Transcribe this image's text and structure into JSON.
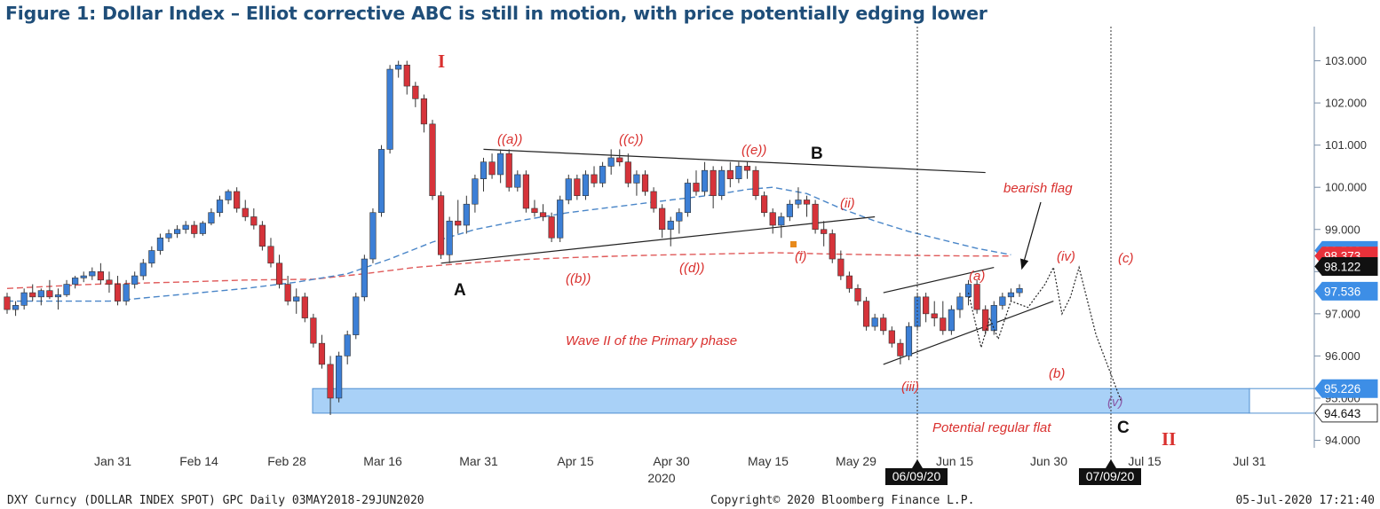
{
  "title": "Figure 1: Dollar Index – Elliot corrective ABC is still in motion, with price potentially edging lower",
  "colors": {
    "up": "#3c7fd6",
    "down": "#d6333a",
    "ma_short": "#4a86c8",
    "ma_long": "#e05a5a",
    "zone": "#a9d1f7",
    "callout_red": "#e8313a",
    "callout_blue": "#3d8ee6"
  },
  "footer": {
    "left": "DXY Curncy (DOLLAR INDEX SPOT) GPC  Daily 03MAY2018-29JUN2020",
    "center": "Copyright© 2020 Bloomberg Finance L.P.",
    "right": "05-Jul-2020 17:21:40"
  },
  "chart_data": {
    "type": "candlestick",
    "x_tick_labels": [
      "Jan 31",
      "Feb 14",
      "Feb 28",
      "Mar 16",
      "Mar 31",
      "Apr 15",
      "Apr 30",
      "May 15",
      "May 29",
      "Jun 15",
      "Jun 30",
      "Jul 15",
      "Jul 31"
    ],
    "year_label": "2020",
    "ylim": [
      93.9,
      103.8
    ],
    "y_ticks": [
      "94.000",
      "95.000",
      "96.000",
      "97.000",
      "98.000",
      "99.000",
      "100.000",
      "101.000",
      "102.000",
      "103.000"
    ],
    "value_labels": [
      {
        "text": "98.502",
        "value": 98.502,
        "color": "blue"
      },
      {
        "text": "98.373",
        "value": 98.373,
        "color": "red"
      },
      {
        "text": "98.122",
        "value": 98.122,
        "color": "black"
      },
      {
        "text": "97.536",
        "value": 97.536,
        "color": "blue"
      },
      {
        "text": "95.226",
        "value": 95.226,
        "color": "blue"
      },
      {
        "text": "94.643",
        "value": 94.643,
        "color": "white"
      }
    ],
    "support_zone": {
      "low": 94.643,
      "high": 95.226
    },
    "vlines": [
      {
        "date": "06/09/20"
      },
      {
        "date": "07/09/20"
      }
    ],
    "candles": [
      [
        97.4,
        97.5,
        97.0,
        97.1
      ],
      [
        97.1,
        97.3,
        96.95,
        97.2
      ],
      [
        97.2,
        97.6,
        97.1,
        97.5
      ],
      [
        97.5,
        97.7,
        97.3,
        97.4
      ],
      [
        97.4,
        97.6,
        97.2,
        97.55
      ],
      [
        97.55,
        97.8,
        97.35,
        97.4
      ],
      [
        97.4,
        97.6,
        97.1,
        97.45
      ],
      [
        97.45,
        97.8,
        97.4,
        97.7
      ],
      [
        97.7,
        97.9,
        97.6,
        97.85
      ],
      [
        97.85,
        98.0,
        97.75,
        97.9
      ],
      [
        97.9,
        98.1,
        97.8,
        98.0
      ],
      [
        98.0,
        98.2,
        97.7,
        97.8
      ],
      [
        97.8,
        98.0,
        97.5,
        97.7
      ],
      [
        97.7,
        97.9,
        97.2,
        97.3
      ],
      [
        97.3,
        97.8,
        97.2,
        97.7
      ],
      [
        97.7,
        98.0,
        97.6,
        97.9
      ],
      [
        97.9,
        98.3,
        97.8,
        98.2
      ],
      [
        98.2,
        98.6,
        98.1,
        98.5
      ],
      [
        98.5,
        98.9,
        98.4,
        98.8
      ],
      [
        98.8,
        99.0,
        98.7,
        98.9
      ],
      [
        98.9,
        99.1,
        98.8,
        99.0
      ],
      [
        99.0,
        99.2,
        98.9,
        99.1
      ],
      [
        99.1,
        99.2,
        98.8,
        98.9
      ],
      [
        98.9,
        99.2,
        98.85,
        99.15
      ],
      [
        99.15,
        99.5,
        99.1,
        99.4
      ],
      [
        99.4,
        99.8,
        99.3,
        99.7
      ],
      [
        99.7,
        99.95,
        99.6,
        99.9
      ],
      [
        99.9,
        100.0,
        99.4,
        99.5
      ],
      [
        99.5,
        99.7,
        99.2,
        99.3
      ],
      [
        99.3,
        99.5,
        99.0,
        99.1
      ],
      [
        99.1,
        99.2,
        98.5,
        98.6
      ],
      [
        98.6,
        98.8,
        98.1,
        98.2
      ],
      [
        98.2,
        98.4,
        97.6,
        97.7
      ],
      [
        97.7,
        97.9,
        97.2,
        97.3
      ],
      [
        97.3,
        97.6,
        97.0,
        97.4
      ],
      [
        97.4,
        97.5,
        96.8,
        96.9
      ],
      [
        96.9,
        97.0,
        96.2,
        96.3
      ],
      [
        96.3,
        96.5,
        95.7,
        95.8
      ],
      [
        95.8,
        96.0,
        94.6,
        95.0
      ],
      [
        95.0,
        96.1,
        94.9,
        96.0
      ],
      [
        96.0,
        96.6,
        95.8,
        96.5
      ],
      [
        96.5,
        97.5,
        96.4,
        97.4
      ],
      [
        97.4,
        98.4,
        97.3,
        98.3
      ],
      [
        98.3,
        99.5,
        98.2,
        99.4
      ],
      [
        99.4,
        101.0,
        99.3,
        100.9
      ],
      [
        100.9,
        102.9,
        100.8,
        102.8
      ],
      [
        102.8,
        103.0,
        102.6,
        102.9
      ],
      [
        102.9,
        103.0,
        102.2,
        102.4
      ],
      [
        102.4,
        102.5,
        101.9,
        102.1
      ],
      [
        102.1,
        102.2,
        101.3,
        101.5
      ],
      [
        101.5,
        101.6,
        99.7,
        99.8
      ],
      [
        99.8,
        99.9,
        98.3,
        98.4
      ],
      [
        98.4,
        99.3,
        98.2,
        99.2
      ],
      [
        99.2,
        99.7,
        98.9,
        99.1
      ],
      [
        99.1,
        99.8,
        98.9,
        99.6
      ],
      [
        99.6,
        100.3,
        99.4,
        100.2
      ],
      [
        100.2,
        100.7,
        99.9,
        100.6
      ],
      [
        100.6,
        100.8,
        100.2,
        100.3
      ],
      [
        100.3,
        100.9,
        100.1,
        100.8
      ],
      [
        100.8,
        100.9,
        99.9,
        100.0
      ],
      [
        100.0,
        100.4,
        99.9,
        100.3
      ],
      [
        100.3,
        100.4,
        99.4,
        99.5
      ],
      [
        99.5,
        99.7,
        99.3,
        99.4
      ],
      [
        99.4,
        99.6,
        99.2,
        99.3
      ],
      [
        99.3,
        99.4,
        98.7,
        98.8
      ],
      [
        98.8,
        99.8,
        98.7,
        99.7
      ],
      [
        99.7,
        100.3,
        99.6,
        100.2
      ],
      [
        100.2,
        100.3,
        99.7,
        99.8
      ],
      [
        99.8,
        100.4,
        99.7,
        100.3
      ],
      [
        100.3,
        100.5,
        100.0,
        100.1
      ],
      [
        100.1,
        100.6,
        100.0,
        100.5
      ],
      [
        100.5,
        100.9,
        100.3,
        100.7
      ],
      [
        100.7,
        100.9,
        100.5,
        100.6
      ],
      [
        100.6,
        100.8,
        100.0,
        100.1
      ],
      [
        100.1,
        100.4,
        99.8,
        100.3
      ],
      [
        100.3,
        100.4,
        99.8,
        99.9
      ],
      [
        99.9,
        100.0,
        99.4,
        99.5
      ],
      [
        99.5,
        99.6,
        98.8,
        99.0
      ],
      [
        99.0,
        99.3,
        98.6,
        99.2
      ],
      [
        99.2,
        99.5,
        98.9,
        99.4
      ],
      [
        99.4,
        100.2,
        99.3,
        100.1
      ],
      [
        100.1,
        100.4,
        99.8,
        99.9
      ],
      [
        99.9,
        100.6,
        99.8,
        100.4
      ],
      [
        100.4,
        100.5,
        99.5,
        99.8
      ],
      [
        99.8,
        100.5,
        99.7,
        100.4
      ],
      [
        100.4,
        100.6,
        100.0,
        100.2
      ],
      [
        100.2,
        100.6,
        100.1,
        100.5
      ],
      [
        100.5,
        100.6,
        100.2,
        100.4
      ],
      [
        100.4,
        100.5,
        99.7,
        99.8
      ],
      [
        99.8,
        99.9,
        99.3,
        99.4
      ],
      [
        99.4,
        99.5,
        98.9,
        99.1
      ],
      [
        99.1,
        99.4,
        98.8,
        99.3
      ],
      [
        99.3,
        99.7,
        99.2,
        99.6
      ],
      [
        99.6,
        100.0,
        99.5,
        99.7
      ],
      [
        99.7,
        99.8,
        99.3,
        99.6
      ],
      [
        99.6,
        99.7,
        98.9,
        99.0
      ],
      [
        99.0,
        99.2,
        98.6,
        98.9
      ],
      [
        98.9,
        99.0,
        98.2,
        98.3
      ],
      [
        98.3,
        98.5,
        97.8,
        97.9
      ],
      [
        97.9,
        98.0,
        97.5,
        97.6
      ],
      [
        97.6,
        97.7,
        97.2,
        97.3
      ],
      [
        97.3,
        97.4,
        96.6,
        96.7
      ],
      [
        96.7,
        97.0,
        96.6,
        96.9
      ],
      [
        96.9,
        97.0,
        96.5,
        96.6
      ],
      [
        96.6,
        96.7,
        96.2,
        96.3
      ],
      [
        96.3,
        96.4,
        95.8,
        96.0
      ],
      [
        96.0,
        96.8,
        95.9,
        96.7
      ],
      [
        96.7,
        97.5,
        96.6,
        97.4
      ],
      [
        97.4,
        97.5,
        96.8,
        97.0
      ],
      [
        97.0,
        97.3,
        96.7,
        96.9
      ],
      [
        96.9,
        97.3,
        96.5,
        96.6
      ],
      [
        96.6,
        97.2,
        96.5,
        97.1
      ],
      [
        97.1,
        97.5,
        96.9,
        97.4
      ],
      [
        97.4,
        97.8,
        97.2,
        97.7
      ],
      [
        97.7,
        97.8,
        97.0,
        97.1
      ],
      [
        97.1,
        97.2,
        96.5,
        96.6
      ],
      [
        96.6,
        97.3,
        96.5,
        97.2
      ],
      [
        97.2,
        97.5,
        97.1,
        97.4
      ],
      [
        97.4,
        97.6,
        97.3,
        97.5
      ],
      [
        97.5,
        97.7,
        97.4,
        97.6
      ]
    ],
    "ma_short": [
      [
        97.3,
        0
      ],
      [
        97.3,
        12
      ],
      [
        97.45,
        20
      ],
      [
        97.6,
        28
      ],
      [
        97.75,
        34
      ],
      [
        97.95,
        40
      ],
      [
        98.3,
        45
      ],
      [
        98.7,
        50
      ],
      [
        99.0,
        55
      ],
      [
        99.2,
        60
      ],
      [
        99.4,
        66
      ],
      [
        99.55,
        72
      ],
      [
        99.7,
        78
      ],
      [
        99.82,
        83
      ],
      [
        99.95,
        87
      ],
      [
        100.0,
        90
      ],
      [
        99.85,
        94
      ],
      [
        99.5,
        98
      ],
      [
        99.2,
        102
      ],
      [
        98.95,
        106
      ],
      [
        98.75,
        110
      ],
      [
        98.55,
        114
      ],
      [
        98.4,
        118
      ]
    ],
    "ma_long": [
      [
        97.6,
        0
      ],
      [
        97.7,
        10
      ],
      [
        97.75,
        20
      ],
      [
        97.8,
        28
      ],
      [
        97.82,
        36
      ],
      [
        97.95,
        42
      ],
      [
        98.1,
        48
      ],
      [
        98.2,
        54
      ],
      [
        98.28,
        60
      ],
      [
        98.33,
        66
      ],
      [
        98.37,
        72
      ],
      [
        98.4,
        78
      ],
      [
        98.42,
        84
      ],
      [
        98.45,
        90
      ],
      [
        98.42,
        96
      ],
      [
        98.4,
        102
      ],
      [
        98.38,
        108
      ],
      [
        98.37,
        114
      ],
      [
        98.37,
        118
      ]
    ],
    "trendlines": [
      {
        "x1": 56,
        "y1": 100.9,
        "x2": 115,
        "y2": 100.35
      },
      {
        "x1": 51,
        "y1": 98.2,
        "x2": 102,
        "y2": 99.3
      },
      {
        "x1": 103,
        "y1": 97.5,
        "x2": 116,
        "y2": 98.1
      },
      {
        "x1": 103,
        "y1": 95.8,
        "x2": 123,
        "y2": 97.3
      }
    ],
    "projection": [
      [
        113,
        97.5
      ],
      [
        114.5,
        96.2
      ],
      [
        115.5,
        96.9
      ],
      [
        116.5,
        96.4
      ],
      [
        118,
        97.3
      ],
      [
        120,
        97.15
      ],
      [
        122,
        97.7
      ],
      [
        123,
        98.1
      ],
      [
        124,
        97.0
      ],
      [
        125,
        97.4
      ],
      [
        126,
        98.1
      ],
      [
        128,
        96.5
      ],
      [
        131,
        94.9
      ]
    ],
    "wave_labels_red": [
      "((a))",
      "((c))",
      "((e))",
      "((b))",
      "((d))",
      "(i)",
      "(ii)",
      "(iii)",
      "(iv)",
      "(v)",
      "(a)",
      "(b)",
      "(c)"
    ],
    "wave_labels_black": [
      "A",
      "B",
      "C"
    ],
    "wave_label_I": "I",
    "wave_label_II": "II",
    "annotations": [
      "Wave II of the Primary phase",
      "bearish flag",
      "Potential regular flat"
    ]
  }
}
